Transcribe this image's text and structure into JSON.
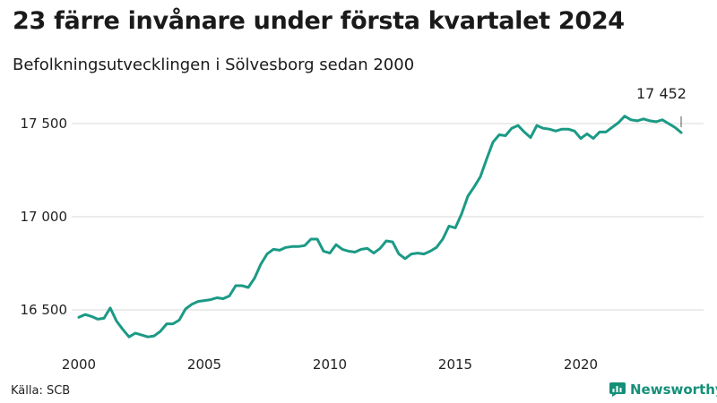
{
  "header": {
    "title": "23 färre invånare under första kvartalet 2024",
    "subtitle": "Befolkningsutvecklingen i Sölvesborg sedan 2000"
  },
  "footer": {
    "source": "Källa: SCB",
    "brand": "Newsworthy"
  },
  "colors": {
    "line": "#1b9a85",
    "grid": "#d9d9d9",
    "brand": "#149079"
  },
  "chart_data": {
    "type": "line",
    "title": "23 färre invånare under första kvartalet 2024",
    "subtitle": "Befolkningsutvecklingen i Sölvesborg sedan 2000",
    "xlabel": "",
    "ylabel": "",
    "x_ticks": [
      2000,
      2005,
      2010,
      2015,
      2020
    ],
    "x_tick_labels": [
      "2000",
      "2005",
      "2010",
      "2015",
      "2020"
    ],
    "y_ticks": [
      16500,
      17000,
      17500
    ],
    "y_tick_labels": [
      "16 500",
      "17 000",
      "17 500"
    ],
    "ylim": [
      16300,
      17600
    ],
    "grid": true,
    "annotation": {
      "x": 2024.0,
      "y": 17452,
      "label": "17 452"
    },
    "x": [
      2000.0,
      2000.25,
      2000.5,
      2000.75,
      2001.0,
      2001.25,
      2001.5,
      2001.75,
      2002.0,
      2002.25,
      2002.5,
      2002.75,
      2003.0,
      2003.25,
      2003.5,
      2003.75,
      2004.0,
      2004.25,
      2004.5,
      2004.75,
      2005.0,
      2005.25,
      2005.5,
      2005.75,
      2006.0,
      2006.25,
      2006.5,
      2006.75,
      2007.0,
      2007.25,
      2007.5,
      2007.75,
      2008.0,
      2008.25,
      2008.5,
      2008.75,
      2009.0,
      2009.25,
      2009.5,
      2009.75,
      2010.0,
      2010.25,
      2010.5,
      2010.75,
      2011.0,
      2011.25,
      2011.5,
      2011.75,
      2012.0,
      2012.25,
      2012.5,
      2012.75,
      2013.0,
      2013.25,
      2013.5,
      2013.75,
      2014.0,
      2014.25,
      2014.5,
      2014.75,
      2015.0,
      2015.25,
      2015.5,
      2015.75,
      2016.0,
      2016.25,
      2016.5,
      2016.75,
      2017.0,
      2017.25,
      2017.5,
      2017.75,
      2018.0,
      2018.25,
      2018.5,
      2018.75,
      2019.0,
      2019.25,
      2019.5,
      2019.75,
      2020.0,
      2020.25,
      2020.5,
      2020.75,
      2021.0,
      2021.25,
      2021.5,
      2021.75,
      2022.0,
      2022.25,
      2022.5,
      2022.75,
      2023.0,
      2023.25,
      2023.5,
      2023.75,
      2024.0
    ],
    "series": [
      {
        "values": [
          16460,
          16475,
          16465,
          16450,
          16455,
          16510,
          16440,
          16395,
          16355,
          16375,
          16365,
          16355,
          16360,
          16385,
          16425,
          16425,
          16445,
          16505,
          16530,
          16545,
          16550,
          16555,
          16565,
          16560,
          16575,
          16630,
          16630,
          16620,
          16670,
          16745,
          16800,
          16825,
          16820,
          16835,
          16840,
          16840,
          16845,
          16880,
          16880,
          16815,
          16805,
          16850,
          16825,
          16815,
          16810,
          16825,
          16830,
          16805,
          16830,
          16870,
          16865,
          16800,
          16775,
          16800,
          16805,
          16800,
          16815,
          16835,
          16880,
          16950,
          16940,
          17015,
          17110,
          17160,
          17215,
          17310,
          17400,
          17440,
          17435,
          17475,
          17490,
          17455,
          17425,
          17490,
          17475,
          17470,
          17460,
          17470,
          17470,
          17460,
          17420,
          17445,
          17420,
          17455,
          17455,
          17480,
          17505,
          17540,
          17520,
          17515,
          17525,
          17515,
          17510,
          17520,
          17500,
          17480,
          17452
        ]
      }
    ]
  }
}
